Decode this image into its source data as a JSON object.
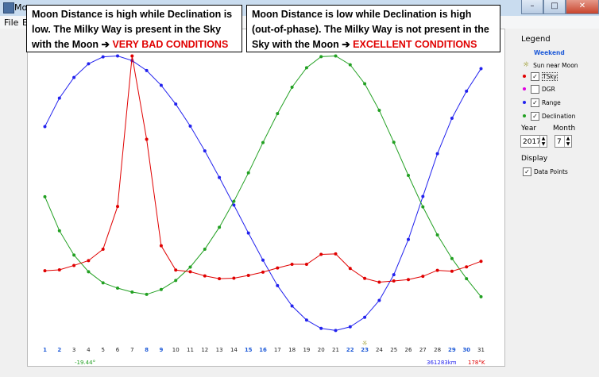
{
  "window": {
    "title": "Moo",
    "buttons": {
      "minimize": "–",
      "maximize": "□",
      "close": "✕"
    }
  },
  "menu": {
    "items": [
      "File",
      "E"
    ]
  },
  "callouts": {
    "left": {
      "text": "Moon Distance is high while Declination is low. The Milky Way is present in the Sky with the Moon ➔ ",
      "highlight": "VERY BAD CONDITIONS"
    },
    "right": {
      "text": "Moon Distance is low while Declination is high (out-of-phase). The Milky Way is not present in the Sky with the Moon ➔ ",
      "highlight": "EXCELLENT CONDITIONS"
    }
  },
  "legend": {
    "title": "Legend",
    "weekend_label": "Weekend",
    "items": [
      {
        "label": "Sun near Moon",
        "color": "#888800",
        "checkbox": false
      },
      {
        "label": "TSky",
        "color": "#e00000",
        "checkbox": true,
        "checked": true
      },
      {
        "label": "DGR",
        "color": "#e000e0",
        "checkbox": true,
        "checked": false
      },
      {
        "label": "Range",
        "color": "#2222ee",
        "checkbox": true,
        "checked": true
      },
      {
        "label": "Declination",
        "color": "#22a022",
        "checkbox": true,
        "checked": true
      }
    ],
    "year_label": "Year",
    "year_value": "2017",
    "month_label": "Month",
    "month_value": "7",
    "display_label": "Display",
    "data_points_label": "Data Points",
    "data_points_checked": true
  },
  "bottom_readouts": {
    "declination": "-19.44°",
    "range": "361283km",
    "tsky": "178°K"
  },
  "sun_marker_day": 23,
  "chart_data": {
    "type": "line",
    "x": [
      1,
      2,
      3,
      4,
      5,
      6,
      7,
      8,
      9,
      10,
      11,
      12,
      13,
      14,
      15,
      16,
      17,
      18,
      19,
      20,
      21,
      22,
      23,
      24,
      25,
      26,
      27,
      28,
      29,
      30,
      31
    ],
    "weekend_days": [
      1,
      2,
      8,
      9,
      15,
      16,
      22,
      23,
      29,
      30
    ],
    "series": [
      {
        "name": "Range",
        "color": "#2222ee",
        "values": [
          0.695,
          0.818,
          0.907,
          0.966,
          0.996,
          1.0,
          0.98,
          0.937,
          0.873,
          0.792,
          0.697,
          0.59,
          0.475,
          0.356,
          0.235,
          0.118,
          0.008,
          -0.08,
          -0.141,
          -0.177,
          -0.186,
          -0.17,
          -0.129,
          -0.056,
          0.055,
          0.207,
          0.393,
          0.578,
          0.731,
          0.848,
          0.945
        ]
      },
      {
        "name": "Declination",
        "color": "#22a022",
        "values": [
          0.392,
          0.245,
          0.14,
          0.068,
          0.02,
          -0.003,
          -0.02,
          -0.03,
          -0.009,
          0.03,
          0.088,
          0.165,
          0.26,
          0.372,
          0.495,
          0.626,
          0.751,
          0.865,
          0.949,
          0.997,
          1.0,
          0.962,
          0.88,
          0.765,
          0.627,
          0.484,
          0.348,
          0.227,
          0.125,
          0.038,
          -0.04
        ]
      },
      {
        "name": "TSky",
        "color": "#e00000",
        "values": [
          0.072,
          0.076,
          0.095,
          0.116,
          0.165,
          0.35,
          1.0,
          0.64,
          0.18,
          0.075,
          0.068,
          0.05,
          0.038,
          0.04,
          0.052,
          0.066,
          0.084,
          0.1,
          0.1,
          0.143,
          0.145,
          0.082,
          0.039,
          0.023,
          0.028,
          0.034,
          0.048,
          0.074,
          0.07,
          0.089,
          0.113
        ]
      }
    ],
    "ylim": [
      -0.2,
      1.0
    ]
  }
}
